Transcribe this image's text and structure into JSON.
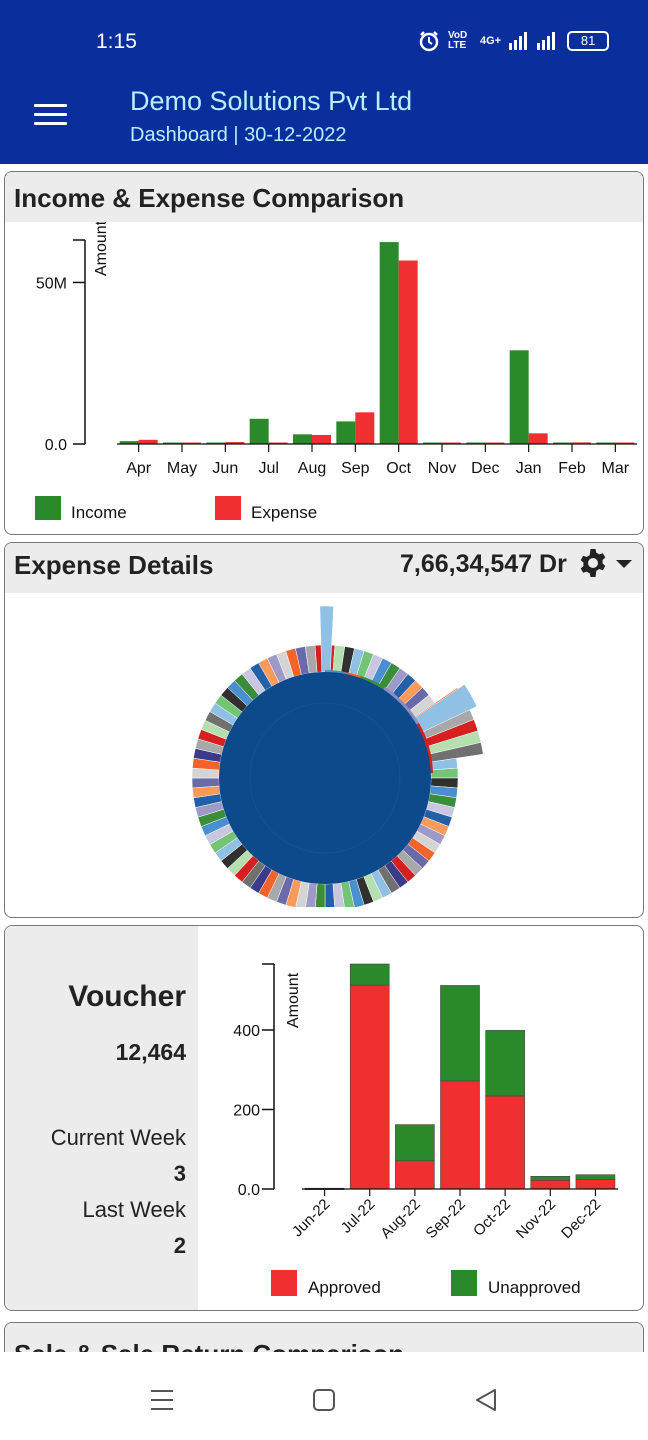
{
  "status_bar": {
    "time": "1:15",
    "battery": "81",
    "network": "4G+",
    "volte": "VoD LTE"
  },
  "header": {
    "company": "Demo Solutions Pvt Ltd",
    "subtitle": "Dashboard | 30-12-2022"
  },
  "income_expense": {
    "title": "Income & Expense Comparison",
    "chart_data": {
      "type": "bar",
      "categories": [
        "Apr",
        "May",
        "Jun",
        "Jul",
        "Aug",
        "Sep",
        "Oct",
        "Nov",
        "Dec",
        "Jan",
        "Feb",
        "Mar"
      ],
      "series": [
        {
          "name": "Income",
          "color": "#2a8a2a",
          "values": [
            0.9,
            0.2,
            0.3,
            7.8,
            3.0,
            7.0,
            62.5,
            0.4,
            0.1,
            29.0,
            0.2,
            0.3
          ]
        },
        {
          "name": "Expense",
          "color": "#f03030",
          "values": [
            1.3,
            0.1,
            0.6,
            0.1,
            2.8,
            9.8,
            56.8,
            0.0,
            0.3,
            3.3,
            0.5,
            0.2
          ]
        }
      ],
      "ylabel": "Amount",
      "yunit": "M",
      "ylim": [
        0,
        65
      ],
      "yticks": [
        {
          "value": 0,
          "label": "0.0"
        },
        {
          "value": 50,
          "label": "50M"
        }
      ],
      "legend": "bottom"
    }
  },
  "expense_details": {
    "title": "Expense Details",
    "amount": "7,66,34,547 Dr",
    "center_color": "#0c4a8c",
    "outer_palette": [
      "#d62020",
      "#f4632a",
      "#fb9a5b",
      "#3a8e3a",
      "#74c476",
      "#b5dfae",
      "#3b3b8a",
      "#6a6aaa",
      "#9e9ac8",
      "#c8c6e0",
      "#303030",
      "#707070",
      "#a8a8a8",
      "#d4d4d4",
      "#2260a8",
      "#4a90d0",
      "#90c0e4"
    ]
  },
  "voucher": {
    "title": "Voucher",
    "total": "12,464",
    "current_week_label": "Current Week",
    "current_week_value": "3",
    "last_week_label": "Last Week",
    "last_week_value": "2",
    "chart_data": {
      "type": "bar",
      "stacked": true,
      "categories": [
        "Jun-22",
        "Jul-22",
        "Aug-22",
        "Sep-22",
        "Oct-22",
        "Nov-22",
        "Dec-22"
      ],
      "series": [
        {
          "name": "Approved",
          "color": "#f03030",
          "values": [
            2,
            513,
            71,
            272,
            234,
            22,
            24
          ]
        },
        {
          "name": "Unapproved",
          "color": "#2a8a2a",
          "values": [
            0,
            53,
            91,
            240,
            165,
            10,
            12
          ]
        }
      ],
      "ylabel": "Amount",
      "ylim": [
        0,
        566
      ],
      "yticks": [
        0,
        200,
        400
      ],
      "ytick_labels": [
        "0.0",
        "200",
        "400"
      ],
      "legend": "bottom"
    }
  },
  "sales": {
    "title": "Sale & Sale Return Comparison"
  }
}
